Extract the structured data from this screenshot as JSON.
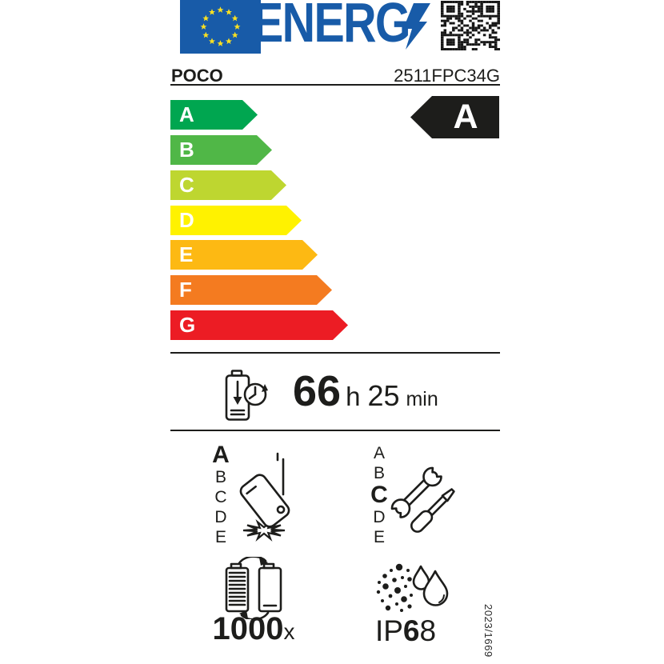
{
  "colors": {
    "eu_blue": "#185BA8",
    "star_yellow": "#FBE122",
    "ink_black": "#1D1D1B",
    "class_a": "#00A650",
    "class_b": "#50B747",
    "class_c": "#BED630",
    "class_d": "#FFF200",
    "class_e": "#FDB913",
    "class_f": "#F47B20",
    "class_g": "#EC1C24"
  },
  "header": {
    "logo_text": "ENERG",
    "brand": "POCO",
    "model": "2511FPC34G"
  },
  "energy_scale": {
    "rating": "A",
    "classes": [
      {
        "label": "A",
        "color": "#00A650"
      },
      {
        "label": "B",
        "color": "#50B747"
      },
      {
        "label": "C",
        "color": "#BED630"
      },
      {
        "label": "D",
        "color": "#FFF200"
      },
      {
        "label": "E",
        "color": "#FDB913"
      },
      {
        "label": "F",
        "color": "#F47B20"
      },
      {
        "label": "G",
        "color": "#EC1C24"
      }
    ]
  },
  "battery_endurance": {
    "hours": "66",
    "hours_unit": "h",
    "minutes": "25",
    "minutes_unit": "min"
  },
  "drop_resistance": {
    "rating": "A",
    "scale": [
      "A",
      "B",
      "C",
      "D",
      "E"
    ]
  },
  "repairability": {
    "rating": "C",
    "scale": [
      "A",
      "B",
      "C",
      "D",
      "E"
    ]
  },
  "battery_cycles": {
    "count": "1000",
    "unit": "x"
  },
  "ingress_protection": {
    "prefix": "IP",
    "dust_rating": "6",
    "water_rating": "8"
  },
  "regulation_number": "2023/1669"
}
